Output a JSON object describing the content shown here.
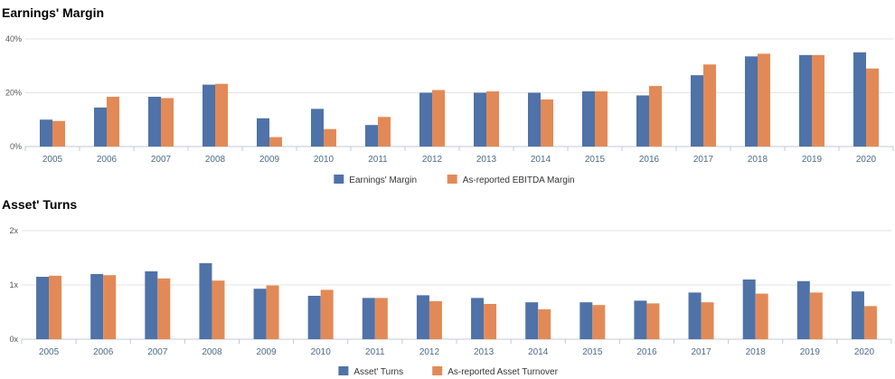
{
  "colors": {
    "series1": "#4f72a8",
    "series2": "#e28a57",
    "grid": "#e3e3e3",
    "axis": "#c0c8d4"
  },
  "chart_data": [
    {
      "type": "bar",
      "title": "Earnings' Margin",
      "categories": [
        "2005",
        "2006",
        "2007",
        "2008",
        "2009",
        "2010",
        "2011",
        "2012",
        "2013",
        "2014",
        "2015",
        "2016",
        "2017",
        "2018",
        "2019",
        "2020"
      ],
      "series": [
        {
          "name": "Earnings' Margin",
          "values": [
            10,
            14.5,
            18.5,
            23,
            10.5,
            14,
            8,
            20,
            20,
            20,
            20.5,
            19,
            26.5,
            33.5,
            34,
            35
          ]
        },
        {
          "name": "As-reported EBITDA Margin",
          "values": [
            9.5,
            18.5,
            18,
            23.3,
            3.5,
            6.5,
            11,
            21,
            20.5,
            17.5,
            20.5,
            22.5,
            30.5,
            34.5,
            34,
            29
          ]
        }
      ],
      "yticks": [
        "0%",
        "20%",
        "40%"
      ],
      "ylim": [
        0,
        40
      ],
      "grid": true,
      "legend": "bottom-center"
    },
    {
      "type": "bar",
      "title": "Asset' Turns",
      "categories": [
        "2005",
        "2006",
        "2007",
        "2008",
        "2009",
        "2010",
        "2011",
        "2012",
        "2013",
        "2014",
        "2015",
        "2016",
        "2017",
        "2018",
        "2019",
        "2020"
      ],
      "series": [
        {
          "name": "Asset' Turns",
          "values": [
            1.15,
            1.2,
            1.25,
            1.4,
            0.93,
            0.8,
            0.76,
            0.81,
            0.76,
            0.68,
            0.68,
            0.71,
            0.86,
            1.1,
            1.07,
            0.88
          ]
        },
        {
          "name": "As-reported Asset Turnover",
          "values": [
            1.17,
            1.18,
            1.12,
            1.08,
            0.99,
            0.91,
            0.76,
            0.7,
            0.65,
            0.55,
            0.63,
            0.66,
            0.68,
            0.84,
            0.86,
            0.61
          ]
        }
      ],
      "yticks": [
        "0x",
        "1x",
        "2x"
      ],
      "ylim": [
        0,
        2
      ],
      "grid": true,
      "legend": "bottom-center"
    }
  ]
}
